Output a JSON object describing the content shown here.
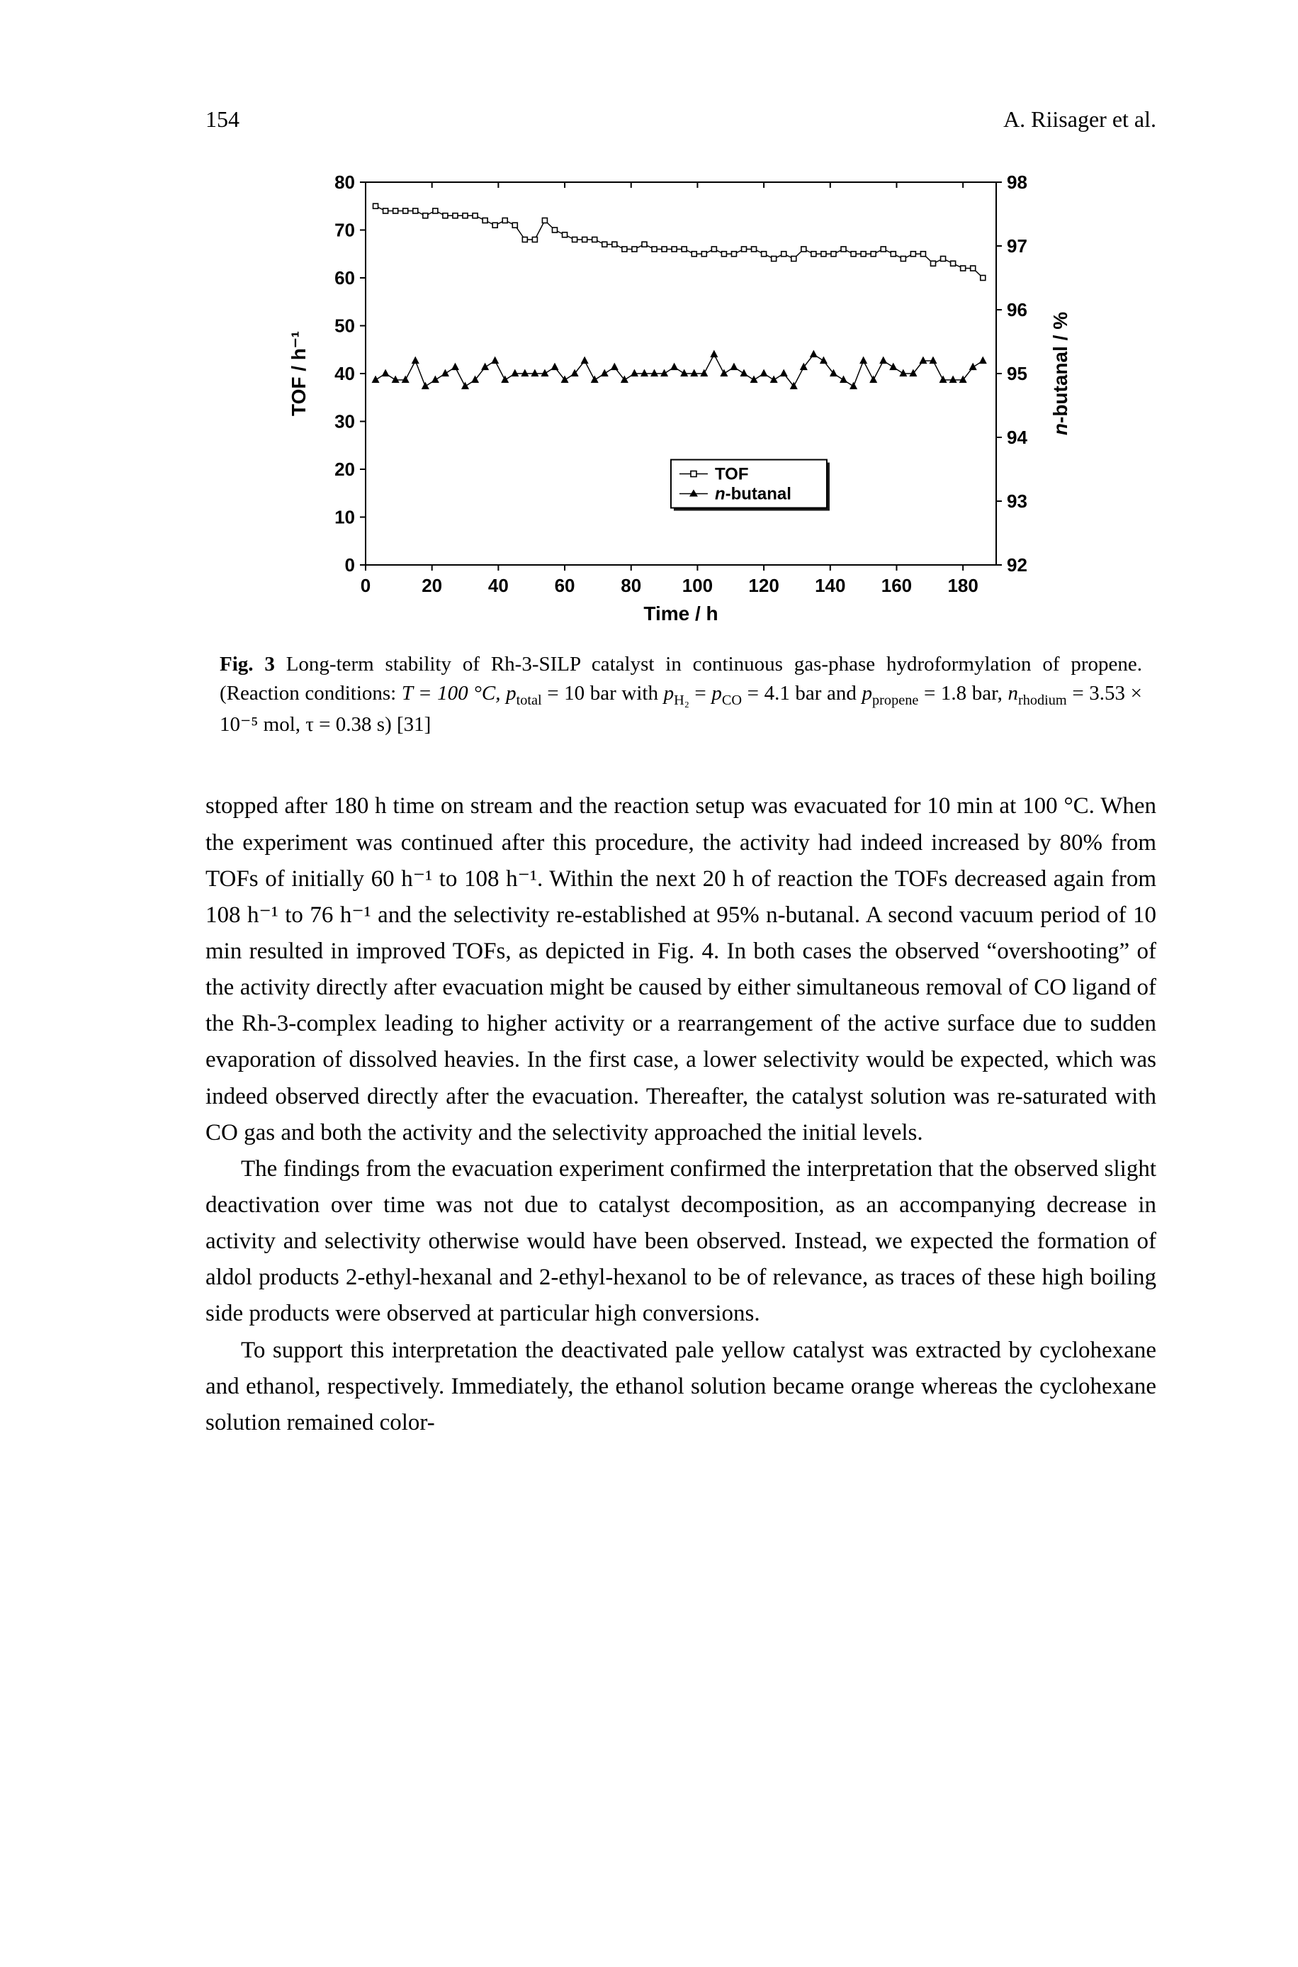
{
  "header": {
    "page_number": "154",
    "running_head": "A. Riisager et al."
  },
  "figure": {
    "type": "line-scatter-dual-axis",
    "x_label": "Time / h",
    "y_left_label": "TOF / h⁻¹",
    "y_right_label": "n-butanal / %",
    "xlim": [
      0,
      190
    ],
    "xtick_step": 20,
    "xticks": [
      0,
      20,
      40,
      60,
      80,
      100,
      120,
      140,
      160,
      180
    ],
    "y_left_lim": [
      0,
      80
    ],
    "y_left_ticks": [
      0,
      10,
      20,
      30,
      40,
      50,
      60,
      70,
      80
    ],
    "y_right_lim": [
      92,
      98
    ],
    "y_right_ticks": [
      92,
      93,
      94,
      95,
      96,
      97,
      98
    ],
    "legend": {
      "items": [
        {
          "marker": "open-square",
          "line": "solid",
          "label": "TOF"
        },
        {
          "marker": "filled-triangle",
          "line": "solid",
          "label": "n-butanal"
        }
      ],
      "n_label_prefix": "—□— ",
      "n_label": "TOF",
      "b_label_prefix": "—▲— ",
      "b_label_html": "n-butanal"
    },
    "series_tof": {
      "marker": "open-square",
      "color": "#000000",
      "marker_size": 7,
      "x": [
        3,
        6,
        9,
        12,
        15,
        18,
        21,
        24,
        27,
        30,
        33,
        36,
        39,
        42,
        45,
        48,
        51,
        54,
        57,
        60,
        63,
        66,
        69,
        72,
        75,
        78,
        81,
        84,
        87,
        90,
        93,
        96,
        99,
        102,
        105,
        108,
        111,
        114,
        117,
        120,
        123,
        126,
        129,
        132,
        135,
        138,
        141,
        144,
        147,
        150,
        153,
        156,
        159,
        162,
        165,
        168,
        171,
        174,
        177,
        180,
        183,
        186
      ],
      "y": [
        75,
        74,
        74,
        74,
        74,
        73,
        74,
        73,
        73,
        73,
        73,
        72,
        71,
        72,
        71,
        68,
        68,
        72,
        70,
        69,
        68,
        68,
        68,
        67,
        67,
        66,
        66,
        67,
        66,
        66,
        66,
        66,
        65,
        65,
        66,
        65,
        65,
        66,
        66,
        65,
        64,
        65,
        64,
        66,
        65,
        65,
        65,
        66,
        65,
        65,
        65,
        66,
        65,
        64,
        65,
        65,
        63,
        64,
        63,
        62,
        62,
        60
      ]
    },
    "series_nbutanal": {
      "marker": "filled-triangle",
      "color": "#000000",
      "marker_size": 8,
      "x": [
        3,
        6,
        9,
        12,
        15,
        18,
        21,
        24,
        27,
        30,
        33,
        36,
        39,
        42,
        45,
        48,
        51,
        54,
        57,
        60,
        63,
        66,
        69,
        72,
        75,
        78,
        81,
        84,
        87,
        90,
        93,
        96,
        99,
        102,
        105,
        108,
        111,
        114,
        117,
        120,
        123,
        126,
        129,
        132,
        135,
        138,
        141,
        144,
        147,
        150,
        153,
        156,
        159,
        162,
        165,
        168,
        171,
        174,
        177,
        180,
        183,
        186
      ],
      "y": [
        94.9,
        95.0,
        94.9,
        94.9,
        95.2,
        94.8,
        94.9,
        95.0,
        95.1,
        94.8,
        94.9,
        95.1,
        95.2,
        94.9,
        95.0,
        95.0,
        95.0,
        95.0,
        95.1,
        94.9,
        95.0,
        95.2,
        94.9,
        95.0,
        95.1,
        94.9,
        95.0,
        95.0,
        95.0,
        95.0,
        95.1,
        95.0,
        95.0,
        95.0,
        95.3,
        95.0,
        95.1,
        95.0,
        94.9,
        95.0,
        94.9,
        95.0,
        94.8,
        95.1,
        95.3,
        95.2,
        95.0,
        94.9,
        94.8,
        95.2,
        94.9,
        95.2,
        95.1,
        95.0,
        95.0,
        95.2,
        95.2,
        94.9,
        94.9,
        94.9,
        95.1,
        95.2
      ]
    },
    "axis_color": "#000000",
    "background_color": "#ffffff",
    "axis_line_width": 2,
    "tick_length": 8,
    "label_fontsize": 28,
    "tick_fontsize": 26,
    "legend_fontsize": 24
  },
  "caption": {
    "label": "Fig. 3",
    "text_before": "  Long-term stability of Rh-3-SILP catalyst in continuous gas-phase hydroformylation of propene. (Reaction conditions: ",
    "cond_T": "T = 100 °C, ",
    "cond_ptotal_var": "p",
    "cond_ptotal_sub": "total",
    "cond_ptotal_rest": " = 10 bar with ",
    "cond_pH2_var": "p",
    "cond_pH2_sub": "H₂",
    "cond_eq": " = ",
    "cond_pCO_var": "p",
    "cond_pCO_sub": "CO",
    "cond_pCO_rest": " = 4.1 bar and ",
    "cond_ppropene_var": "p",
    "cond_ppropene_sub": "propene",
    "cond_ppropene_rest": " = 1.8 bar, ",
    "cond_nrh_var": "n",
    "cond_nrh_sub": "rhodium",
    "cond_nrh_rest": " = 3.53 × 10⁻⁵ mol, τ = 0.38 s) [31]"
  },
  "body": {
    "p1": "stopped after 180 h time on stream and the reaction setup was evacuated for 10 min at 100 °C. When the experiment was continued after this procedure, the activity had indeed increased by 80% from TOFs of initially 60 h⁻¹ to 108 h⁻¹. Within the next 20 h of reaction the TOFs decreased again from 108 h⁻¹ to 76 h⁻¹ and the selectivity re-established at 95% n-butanal. A second vacuum period of 10 min resulted in improved TOFs, as depicted in Fig. 4. In both cases the observed “overshooting” of the activity directly after evacuation might be caused by either simultaneous removal of CO ligand of the Rh-3-complex leading to higher activity or a rearrangement of the active surface due to sudden evaporation of dissolved heavies. In the first case, a lower selectivity would be expected, which was indeed observed directly after the evacuation. Thereafter, the catalyst solution was re-saturated with CO gas and both the activity and the selectivity approached the initial levels.",
    "p2": "The findings from the evacuation experiment confirmed the interpretation that the observed slight deactivation over time was not due to catalyst decomposition, as an accompanying decrease in activity and selectivity otherwise would have been observed. Instead, we expected the formation of aldol products 2-ethyl-hexanal and 2-ethyl-hexanol to be of relevance, as traces of these high boiling side products were observed at particular high conversions.",
    "p3": "To support this interpretation the deactivated pale yellow catalyst was extracted by cyclohexane and ethanol, respectively. Immediately, the ethanol solution became orange whereas the cyclohexane solution remained color-"
  }
}
